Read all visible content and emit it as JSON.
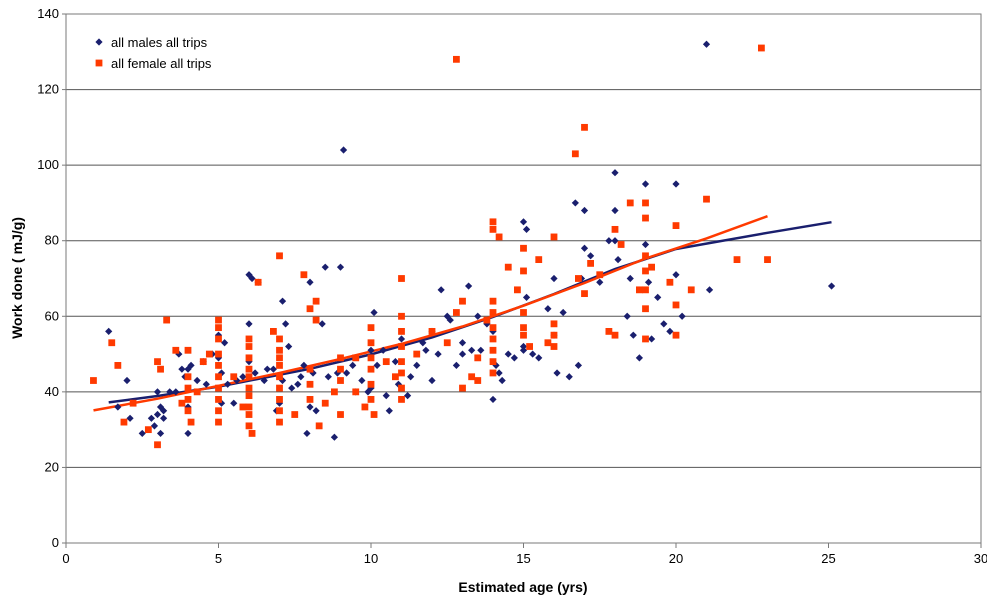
{
  "chart_data": {
    "type": "scatter",
    "xlabel": "Estimated age (yrs)",
    "ylabel": "Work done ( mJ/g)",
    "xlim": [
      0,
      30
    ],
    "ylim": [
      0,
      140
    ],
    "x_ticks": [
      0,
      5,
      10,
      15,
      20,
      25,
      30
    ],
    "y_ticks": [
      0,
      20,
      40,
      60,
      80,
      100,
      120,
      140
    ],
    "grid": "horizontal",
    "legend_position": "top-left",
    "colors": {
      "males": "#1a1f6e",
      "females": "#ff3a00",
      "grid": "#555555",
      "axis": "#7a7a7a"
    },
    "series": [
      {
        "name": "all males all trips",
        "marker": "diamond",
        "color": "#1a1f6e",
        "points": [
          [
            1.4,
            56
          ],
          [
            1.7,
            36
          ],
          [
            2,
            43
          ],
          [
            2.1,
            33
          ],
          [
            2.5,
            29
          ],
          [
            2.8,
            33
          ],
          [
            2.9,
            31
          ],
          [
            3,
            40
          ],
          [
            3,
            34
          ],
          [
            3.1,
            29
          ],
          [
            3.1,
            36
          ],
          [
            3.2,
            35
          ],
          [
            3.2,
            33
          ],
          [
            3.4,
            40
          ],
          [
            3.6,
            40
          ],
          [
            3.7,
            50
          ],
          [
            3.8,
            46
          ],
          [
            3.9,
            44
          ],
          [
            4,
            36
          ],
          [
            4,
            46
          ],
          [
            4,
            29
          ],
          [
            4.1,
            47
          ],
          [
            4.3,
            43
          ],
          [
            4.5,
            48
          ],
          [
            4.6,
            42
          ],
          [
            4.8,
            50
          ],
          [
            5,
            49
          ],
          [
            5,
            55
          ],
          [
            5.1,
            37
          ],
          [
            5.1,
            45
          ],
          [
            5.2,
            53
          ],
          [
            5.3,
            42
          ],
          [
            5.5,
            37
          ],
          [
            5.6,
            43
          ],
          [
            5.8,
            44
          ],
          [
            6,
            48
          ],
          [
            6,
            58
          ],
          [
            6,
            71
          ],
          [
            6.1,
            70
          ],
          [
            6.2,
            45
          ],
          [
            6.3,
            69
          ],
          [
            6.5,
            43
          ],
          [
            6.6,
            46
          ],
          [
            6.8,
            46
          ],
          [
            6.9,
            35
          ],
          [
            7,
            37
          ],
          [
            7.1,
            43
          ],
          [
            7.1,
            64
          ],
          [
            7.2,
            58
          ],
          [
            7.3,
            52
          ],
          [
            7.4,
            41
          ],
          [
            7.6,
            42
          ],
          [
            7.7,
            44
          ],
          [
            7.8,
            47
          ],
          [
            7.9,
            29
          ],
          [
            8,
            69
          ],
          [
            8,
            36
          ],
          [
            8.1,
            45
          ],
          [
            8.2,
            35
          ],
          [
            8.4,
            58
          ],
          [
            8.5,
            73
          ],
          [
            8.6,
            44
          ],
          [
            8.8,
            28
          ],
          [
            8.9,
            45
          ],
          [
            9,
            73
          ],
          [
            9.1,
            104
          ],
          [
            9.2,
            45
          ],
          [
            9.4,
            47
          ],
          [
            9.5,
            40
          ],
          [
            9.7,
            43
          ],
          [
            9.9,
            40
          ],
          [
            10,
            51
          ],
          [
            10,
            41
          ],
          [
            10.1,
            61
          ],
          [
            10.2,
            47
          ],
          [
            10.4,
            51
          ],
          [
            10.5,
            39
          ],
          [
            10.6,
            35
          ],
          [
            10.8,
            48
          ],
          [
            10.9,
            42
          ],
          [
            11,
            54
          ],
          [
            11.2,
            39
          ],
          [
            11.3,
            44
          ],
          [
            11.5,
            47
          ],
          [
            11.7,
            53
          ],
          [
            11.8,
            51
          ],
          [
            12,
            56
          ],
          [
            12,
            43
          ],
          [
            12.2,
            50
          ],
          [
            12.3,
            67
          ],
          [
            12.5,
            60
          ],
          [
            12.6,
            59
          ],
          [
            12.8,
            47
          ],
          [
            13,
            50
          ],
          [
            13,
            53
          ],
          [
            13.2,
            68
          ],
          [
            13.3,
            51
          ],
          [
            13.5,
            60
          ],
          [
            13.6,
            51
          ],
          [
            13.8,
            58
          ],
          [
            14,
            38
          ],
          [
            14,
            56
          ],
          [
            14.1,
            47
          ],
          [
            14.2,
            45
          ],
          [
            14.3,
            43
          ],
          [
            14.5,
            50
          ],
          [
            14.7,
            49
          ],
          [
            15,
            52
          ],
          [
            15,
            51
          ],
          [
            15,
            85
          ],
          [
            15.1,
            83
          ],
          [
            15.1,
            65
          ],
          [
            15.3,
            50
          ],
          [
            15.5,
            49
          ],
          [
            15.8,
            62
          ],
          [
            16,
            70
          ],
          [
            16,
            55
          ],
          [
            16.1,
            45
          ],
          [
            16.3,
            61
          ],
          [
            16.5,
            44
          ],
          [
            16.7,
            90
          ],
          [
            16.8,
            47
          ],
          [
            16.9,
            70
          ],
          [
            17,
            88
          ],
          [
            17,
            78
          ],
          [
            17.2,
            76
          ],
          [
            17.5,
            69
          ],
          [
            17.8,
            80
          ],
          [
            18,
            98
          ],
          [
            18,
            88
          ],
          [
            18,
            80
          ],
          [
            18.1,
            75
          ],
          [
            18.4,
            60
          ],
          [
            18.5,
            70
          ],
          [
            18.6,
            55
          ],
          [
            18.8,
            49
          ],
          [
            19,
            95
          ],
          [
            19,
            79
          ],
          [
            19.1,
            69
          ],
          [
            19.2,
            54
          ],
          [
            19.4,
            65
          ],
          [
            19.6,
            58
          ],
          [
            19.8,
            56
          ],
          [
            20,
            95
          ],
          [
            20,
            71
          ],
          [
            20.2,
            60
          ],
          [
            21,
            132
          ],
          [
            21.1,
            67
          ],
          [
            25.1,
            68
          ]
        ]
      },
      {
        "name": "all female all trips",
        "marker": "square",
        "color": "#ff3a00",
        "points": [
          [
            0.9,
            43
          ],
          [
            1.5,
            53
          ],
          [
            1.7,
            47
          ],
          [
            1.9,
            32
          ],
          [
            2.2,
            37
          ],
          [
            2.7,
            30
          ],
          [
            3,
            48
          ],
          [
            3,
            26
          ],
          [
            3.1,
            46
          ],
          [
            3.3,
            59
          ],
          [
            3.6,
            51
          ],
          [
            3.8,
            37
          ],
          [
            4,
            51
          ],
          [
            4,
            44
          ],
          [
            4,
            41
          ],
          [
            4,
            38
          ],
          [
            4,
            35
          ],
          [
            4.1,
            32
          ],
          [
            4.3,
            40
          ],
          [
            4.5,
            48
          ],
          [
            4.7,
            50
          ],
          [
            5,
            59
          ],
          [
            5,
            57
          ],
          [
            5,
            54
          ],
          [
            5,
            50
          ],
          [
            5,
            47
          ],
          [
            5,
            44
          ],
          [
            5,
            41
          ],
          [
            5,
            38
          ],
          [
            5,
            35
          ],
          [
            5,
            32
          ],
          [
            5.5,
            44
          ],
          [
            5.8,
            36
          ],
          [
            6,
            54
          ],
          [
            6,
            52
          ],
          [
            6,
            49
          ],
          [
            6,
            46
          ],
          [
            6,
            44
          ],
          [
            6,
            41
          ],
          [
            6,
            39
          ],
          [
            6,
            36
          ],
          [
            6,
            34
          ],
          [
            6,
            31
          ],
          [
            6.1,
            29
          ],
          [
            6.3,
            69
          ],
          [
            6.8,
            56
          ],
          [
            7,
            76
          ],
          [
            7,
            54
          ],
          [
            7,
            51
          ],
          [
            7,
            49
          ],
          [
            7,
            47
          ],
          [
            7,
            44
          ],
          [
            7,
            41
          ],
          [
            7,
            38
          ],
          [
            7,
            35
          ],
          [
            7,
            32
          ],
          [
            7.5,
            34
          ],
          [
            7.8,
            71
          ],
          [
            8,
            62
          ],
          [
            8,
            46
          ],
          [
            8,
            42
          ],
          [
            8,
            38
          ],
          [
            8.2,
            64
          ],
          [
            8.2,
            59
          ],
          [
            8.3,
            31
          ],
          [
            8.5,
            37
          ],
          [
            8.8,
            40
          ],
          [
            9,
            34
          ],
          [
            9,
            49
          ],
          [
            9,
            46
          ],
          [
            9,
            43
          ],
          [
            9.5,
            49
          ],
          [
            9.5,
            40
          ],
          [
            9.8,
            36
          ],
          [
            10,
            57
          ],
          [
            10,
            53
          ],
          [
            10,
            49
          ],
          [
            10,
            46
          ],
          [
            10,
            42
          ],
          [
            10,
            38
          ],
          [
            10.1,
            34
          ],
          [
            10.5,
            48
          ],
          [
            10.8,
            44
          ],
          [
            11,
            70
          ],
          [
            11,
            60
          ],
          [
            11,
            56
          ],
          [
            11,
            52
          ],
          [
            11,
            48
          ],
          [
            11,
            45
          ],
          [
            11,
            41
          ],
          [
            11,
            38
          ],
          [
            11.5,
            50
          ],
          [
            12,
            56
          ],
          [
            12.5,
            53
          ],
          [
            12.8,
            128
          ],
          [
            12.8,
            61
          ],
          [
            13,
            64
          ],
          [
            13,
            41
          ],
          [
            13.3,
            44
          ],
          [
            13.5,
            49
          ],
          [
            13.5,
            43
          ],
          [
            13.8,
            59
          ],
          [
            14,
            85
          ],
          [
            14,
            83
          ],
          [
            14,
            64
          ],
          [
            14,
            61
          ],
          [
            14,
            57
          ],
          [
            14,
            54
          ],
          [
            14,
            51
          ],
          [
            14,
            48
          ],
          [
            14,
            45
          ],
          [
            14.2,
            81
          ],
          [
            14.5,
            73
          ],
          [
            14.8,
            67
          ],
          [
            15,
            78
          ],
          [
            15,
            72
          ],
          [
            15,
            61
          ],
          [
            15,
            57
          ],
          [
            15,
            55
          ],
          [
            15.2,
            52
          ],
          [
            15.5,
            75
          ],
          [
            15.8,
            53
          ],
          [
            16,
            81
          ],
          [
            16,
            58
          ],
          [
            16,
            55
          ],
          [
            16,
            52
          ],
          [
            16.7,
            103
          ],
          [
            16.8,
            70
          ],
          [
            17,
            110
          ],
          [
            17,
            66
          ],
          [
            17.2,
            74
          ],
          [
            17.5,
            71
          ],
          [
            17.8,
            56
          ],
          [
            18,
            83
          ],
          [
            18,
            55
          ],
          [
            18.2,
            79
          ],
          [
            18.5,
            90
          ],
          [
            18.8,
            67
          ],
          [
            19,
            90
          ],
          [
            19,
            86
          ],
          [
            19,
            76
          ],
          [
            19,
            72
          ],
          [
            19,
            67
          ],
          [
            19,
            62
          ],
          [
            19,
            54
          ],
          [
            19.2,
            73
          ],
          [
            19.8,
            69
          ],
          [
            20,
            84
          ],
          [
            20,
            63
          ],
          [
            20,
            55
          ],
          [
            20.5,
            67
          ],
          [
            21,
            91
          ],
          [
            22,
            75
          ],
          [
            22.8,
            131
          ],
          [
            23,
            75
          ]
        ]
      }
    ],
    "trendlines": [
      {
        "series": "all males all trips",
        "color": "#1a1f6e",
        "points": [
          [
            1.4,
            37.2
          ],
          [
            3,
            38.9
          ],
          [
            5,
            41.4
          ],
          [
            8,
            46.1
          ],
          [
            10,
            49.9
          ],
          [
            12,
            54.4
          ],
          [
            14,
            59.8
          ],
          [
            16,
            65.9
          ],
          [
            18,
            72.5
          ],
          [
            20,
            77.8
          ],
          [
            23,
            82.1
          ],
          [
            25.1,
            84.9
          ]
        ]
      },
      {
        "series": "all female all trips",
        "color": "#ff3a00",
        "points": [
          [
            0.9,
            35.1
          ],
          [
            3,
            38.2
          ],
          [
            5,
            41.6
          ],
          [
            7,
            45
          ],
          [
            9,
            48.7
          ],
          [
            11,
            52.7
          ],
          [
            13,
            57.3
          ],
          [
            15,
            62.8
          ],
          [
            17,
            68.8
          ],
          [
            19,
            75.3
          ],
          [
            21,
            80.6
          ],
          [
            23,
            86.5
          ]
        ]
      }
    ]
  }
}
